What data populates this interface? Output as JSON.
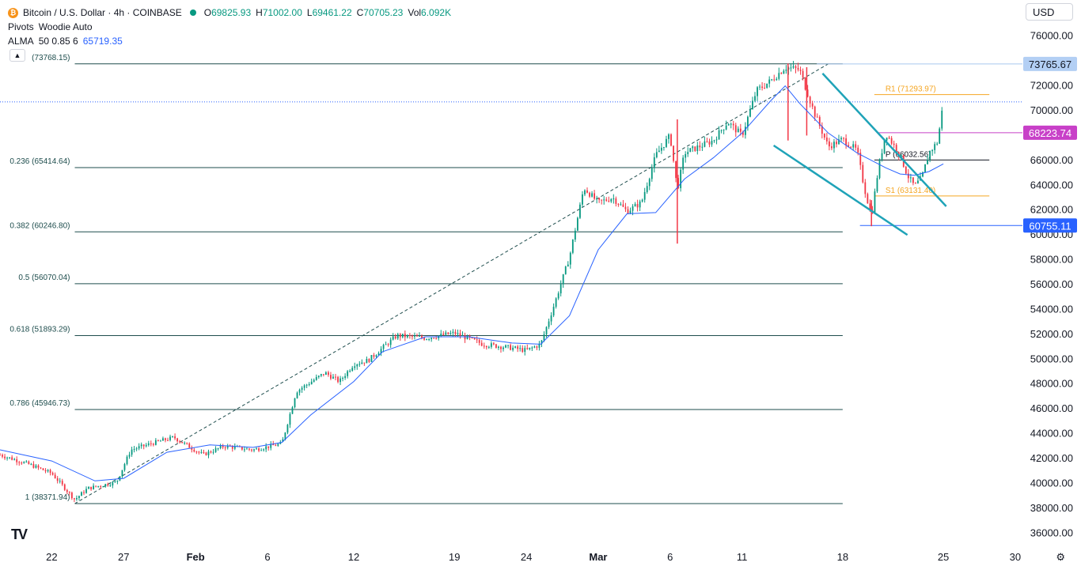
{
  "header": {
    "symbol_title": "Bitcoin / U.S. Dollar · 4h · COINBASE",
    "ohlc": [
      {
        "k": "O",
        "v": "69825.93"
      },
      {
        "k": "H",
        "v": "71002.00"
      },
      {
        "k": "L",
        "v": "69461.22"
      },
      {
        "k": "C",
        "v": "70705.23"
      },
      {
        "k": "Vol",
        "v": "6.092K"
      }
    ],
    "pivots_label": "Pivots",
    "pivots_value": "Woodie Auto",
    "alma_label": "ALMA",
    "alma_params": "50 0.85 6",
    "alma_value": "65719.35",
    "currency": "USD",
    "tv_logo": "TV"
  },
  "colors": {
    "up": "#089981",
    "down": "#f23645",
    "alma": "#2962ff",
    "fib": "#1e4d4d",
    "channel": "#1fa3b8",
    "pivot_r": "#f5a623",
    "pivot_p": "#131722",
    "magenta": "#c840c8",
    "price_tag": "#2962ff"
  },
  "chart_data": {
    "type": "candlestick",
    "title": "Bitcoin / U.S. Dollar · 4h · COINBASE",
    "ylim": [
      35000,
      77000
    ],
    "y_ticks": [
      "76000.00",
      "74000.00",
      "72000.00",
      "70000.00",
      "68000.00",
      "66000.00",
      "64000.00",
      "62000.00",
      "60000.00",
      "58000.00",
      "56000.00",
      "54000.00",
      "52000.00",
      "50000.00",
      "48000.00",
      "46000.00",
      "44000.00",
      "42000.00",
      "40000.00",
      "38000.00",
      "36000.00"
    ],
    "x_ticks": [
      {
        "label": "22",
        "day": 0
      },
      {
        "label": "27",
        "day": 5
      },
      {
        "label": "Feb",
        "day": 10
      },
      {
        "label": "6",
        "day": 15
      },
      {
        "label": "12",
        "day": 21
      },
      {
        "label": "19",
        "day": 28
      },
      {
        "label": "24",
        "day": 33
      },
      {
        "label": "Mar",
        "day": 38
      },
      {
        "label": "6",
        "day": 43
      },
      {
        "label": "11",
        "day": 48
      },
      {
        "label": "18",
        "day": 55
      },
      {
        "label": "25",
        "day": 62
      },
      {
        "label": "30",
        "day": 67
      }
    ],
    "x_range_days": [
      -3.6,
      67.5
    ],
    "fib_levels": [
      {
        "label": "(73768.15)",
        "value": 73768.15
      },
      {
        "label": "0.236 (65414.64)",
        "value": 65414.64
      },
      {
        "label": "0.382 (60246.80)",
        "value": 60246.8
      },
      {
        "label": "0.5 (56070.04)",
        "value": 56070.04
      },
      {
        "label": "0.618 (51893.29)",
        "value": 51893.29
      },
      {
        "label": "0.786 (45946.73)",
        "value": 45946.73
      },
      {
        "label": "1 (38371.94)",
        "value": 38371.94
      }
    ],
    "fib_range_days": [
      1.6,
      55.0
    ],
    "pivots": [
      {
        "label": "R1 (71293.97)",
        "value": 71293.97,
        "kind": "r"
      },
      {
        "label": "P (66032.56)",
        "value": 66032.56,
        "kind": "p"
      },
      {
        "label": "S1 (63131.40)",
        "value": 63131.4,
        "kind": "s"
      }
    ],
    "pivot_range_days": [
      57.2,
      65.2
    ],
    "price_tags": [
      {
        "label": "73765.67",
        "value": 73765.67,
        "style": "light"
      },
      {
        "label": "68223.74",
        "value": 68223.74,
        "style": "magenta"
      },
      {
        "label": "60755.11",
        "value": 60755.11,
        "style": "blue"
      }
    ],
    "horizontal_lines": [
      {
        "value": 73765.67,
        "from_day": 53.2,
        "color": "#a9c6ef"
      },
      {
        "value": 68223.74,
        "from_day": 57.5,
        "color": "#c840c8"
      },
      {
        "value": 60755.11,
        "from_day": 56.2,
        "color": "#2962ff"
      },
      {
        "value": 70705.23,
        "from_day": -3.6,
        "color": "#2962ff",
        "dotted": true
      }
    ],
    "channel_lines": [
      {
        "from": [
          53.6,
          73000
        ],
        "to": [
          62.2,
          62300
        ]
      },
      {
        "from": [
          50.2,
          67200
        ],
        "to": [
          59.5,
          60000
        ]
      }
    ],
    "trend_line": {
      "from": [
        1.6,
        38371.94
      ],
      "to": [
        54.0,
        73768.15
      ]
    },
    "alma": [
      [
        -3.6,
        42700
      ],
      [
        0,
        41800
      ],
      [
        3,
        40200
      ],
      [
        5,
        40400
      ],
      [
        8,
        42500
      ],
      [
        11,
        43100
      ],
      [
        14,
        42900
      ],
      [
        16,
        43300
      ],
      [
        18,
        45500
      ],
      [
        21,
        48200
      ],
      [
        23,
        50600
      ],
      [
        26,
        51800
      ],
      [
        29,
        51800
      ],
      [
        32,
        51300
      ],
      [
        34,
        51200
      ],
      [
        36,
        53500
      ],
      [
        38,
        58800
      ],
      [
        40,
        61700
      ],
      [
        42,
        61800
      ],
      [
        44,
        64500
      ],
      [
        46,
        66200
      ],
      [
        48,
        68200
      ],
      [
        50,
        70800
      ],
      [
        51,
        72000
      ],
      [
        52,
        70600
      ],
      [
        54,
        68200
      ],
      [
        56,
        66600
      ],
      [
        58,
        65400
      ],
      [
        59,
        64900
      ],
      [
        60,
        64800
      ],
      [
        61,
        65100
      ],
      [
        62,
        65719
      ]
    ],
    "anchors": [
      [
        -3.6,
        42300
      ],
      [
        -1.5,
        41500
      ],
      [
        0,
        40800
      ],
      [
        1.6,
        38700
      ],
      [
        2.5,
        39600
      ],
      [
        4.5,
        40100
      ],
      [
        5.5,
        42700
      ],
      [
        7.5,
        43400
      ],
      [
        8.5,
        43700
      ],
      [
        10.5,
        42300
      ],
      [
        12,
        43000
      ],
      [
        14,
        42700
      ],
      [
        16,
        43200
      ],
      [
        17,
        47400
      ],
      [
        19,
        48900
      ],
      [
        20,
        48200
      ],
      [
        21,
        49600
      ],
      [
        22,
        49900
      ],
      [
        24,
        51900
      ],
      [
        26,
        51700
      ],
      [
        28,
        52100
      ],
      [
        30,
        51200
      ],
      [
        32,
        50900
      ],
      [
        33,
        50700
      ],
      [
        34,
        51200
      ],
      [
        35,
        54600
      ],
      [
        36,
        58200
      ],
      [
        37,
        63800
      ],
      [
        38,
        62600
      ],
      [
        39,
        63000
      ],
      [
        40,
        61900
      ],
      [
        41,
        62600
      ],
      [
        42,
        66400
      ],
      [
        43,
        68000
      ],
      [
        43.5,
        63600
      ],
      [
        44,
        66600
      ],
      [
        46,
        67600
      ],
      [
        47,
        69100
      ],
      [
        48,
        68000
      ],
      [
        49,
        71600
      ],
      [
        50,
        72400
      ],
      [
        51,
        73500
      ],
      [
        52,
        73300
      ],
      [
        53,
        69900
      ],
      [
        54,
        67100
      ],
      [
        55,
        67700
      ],
      [
        56,
        66800
      ],
      [
        56.5,
        63800
      ],
      [
        57,
        61500
      ],
      [
        57.5,
        65500
      ],
      [
        58,
        68200
      ],
      [
        59,
        66400
      ],
      [
        59.5,
        64800
      ],
      [
        60,
        63900
      ],
      [
        60.5,
        64600
      ],
      [
        61,
        66600
      ],
      [
        61.6,
        67500
      ],
      [
        62,
        70705
      ]
    ],
    "spikes": [
      {
        "day": 43.5,
        "low": 59300,
        "high": 69300
      },
      {
        "day": 52.5,
        "low": 68000,
        "high": 73500
      },
      {
        "day": 57.0,
        "low": 60700,
        "high": 62800
      },
      {
        "day": 51.2,
        "low": 67600,
        "high": 73800
      }
    ]
  }
}
